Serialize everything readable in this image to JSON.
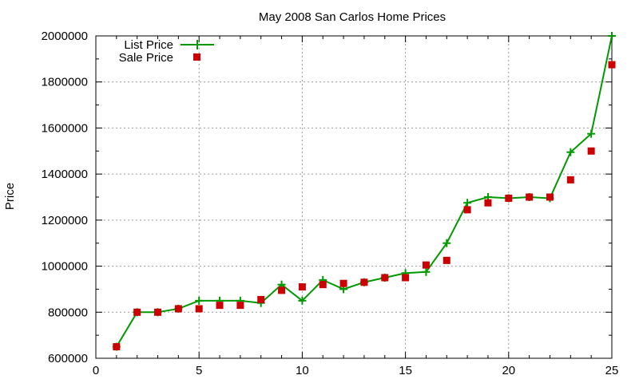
{
  "chart_data": {
    "type": "line",
    "title": "May 2008 San Carlos Home Prices",
    "xlabel": "",
    "ylabel": "Price",
    "xlim": [
      0,
      25
    ],
    "ylim": [
      600000,
      2000000
    ],
    "xticks": [
      "0",
      "5",
      "10",
      "15",
      "20",
      "25"
    ],
    "yticks": [
      "600000",
      "800000",
      "1000000",
      "1200000",
      "1400000",
      "1600000",
      "1800000",
      "2000000"
    ],
    "grid": true,
    "legend_position": "top-left",
    "x": [
      1,
      2,
      3,
      4,
      5,
      6,
      7,
      8,
      9,
      10,
      11,
      12,
      13,
      14,
      15,
      16,
      17,
      18,
      19,
      20,
      21,
      22,
      23,
      24,
      25
    ],
    "series": [
      {
        "name": "List Price",
        "style": "line-with-plus-markers",
        "color": "#009900",
        "values": [
          650000,
          800000,
          800000,
          815000,
          850000,
          850000,
          850000,
          840000,
          920000,
          850000,
          940000,
          900000,
          930000,
          950000,
          970000,
          975000,
          1100000,
          1275000,
          1300000,
          1295000,
          1300000,
          1295000,
          1495000,
          1575000,
          2000000
        ]
      },
      {
        "name": "Sale Price",
        "style": "square-markers",
        "color": "#cc0000",
        "values": [
          650000,
          800000,
          800000,
          815000,
          815000,
          830000,
          830000,
          855000,
          895000,
          910000,
          920000,
          925000,
          930000,
          950000,
          950000,
          1005000,
          1025000,
          1245000,
          1275000,
          1295000,
          1300000,
          1300000,
          1375000,
          1500000,
          1875000
        ]
      }
    ]
  }
}
